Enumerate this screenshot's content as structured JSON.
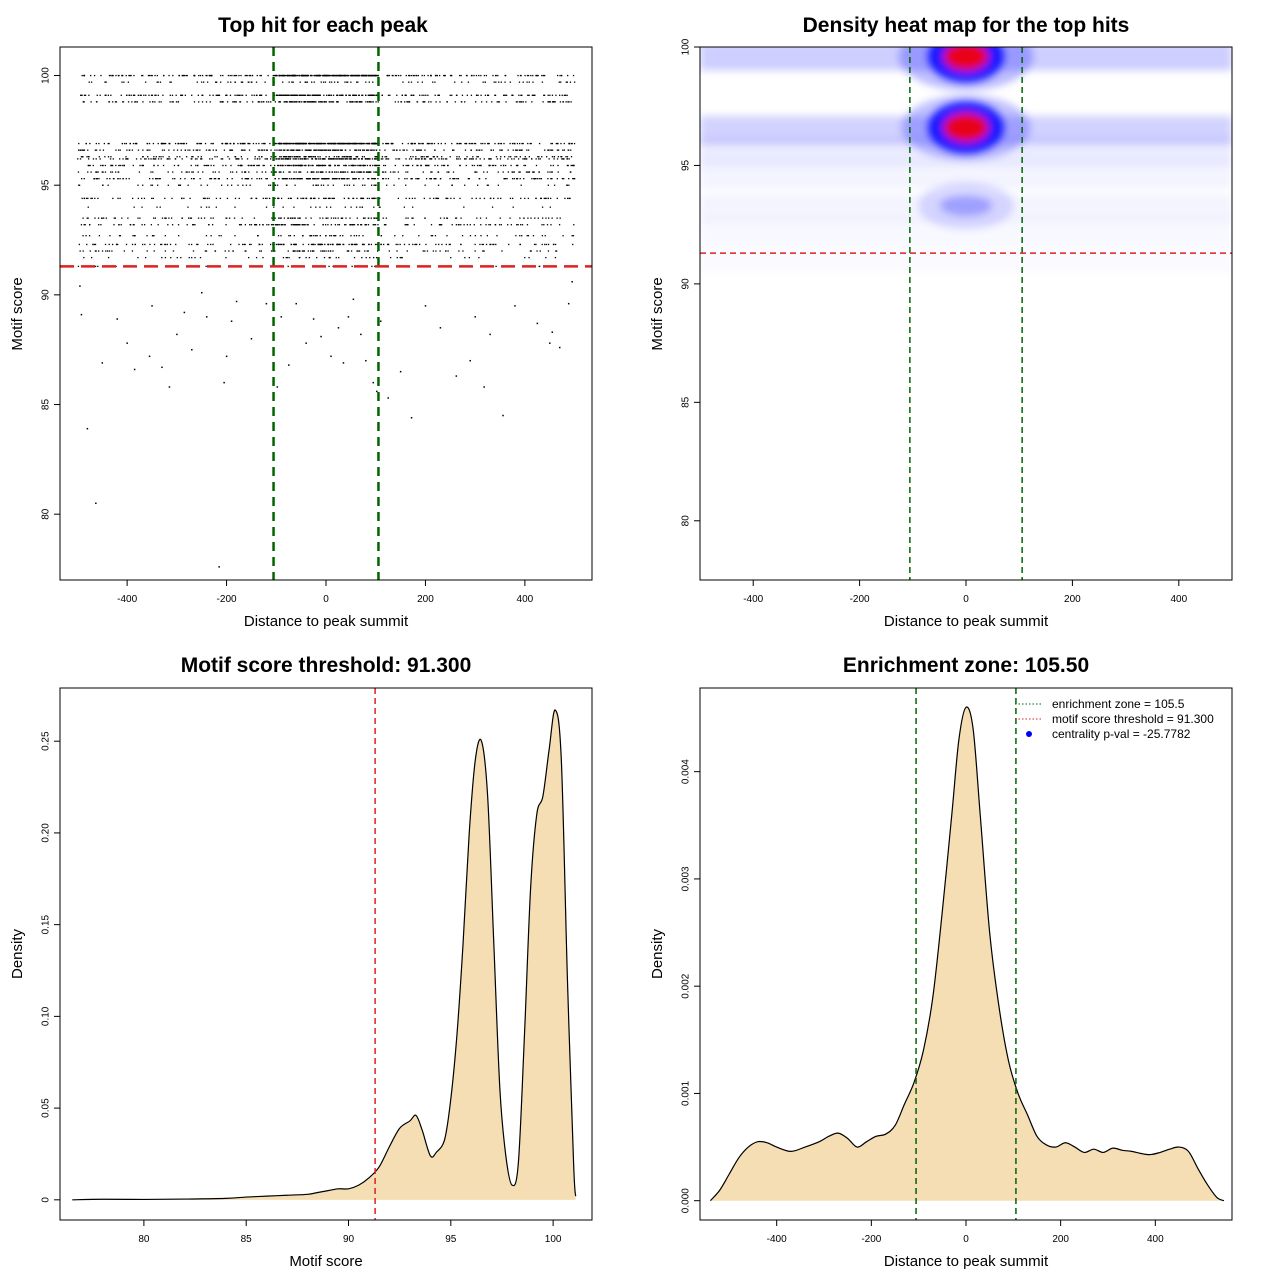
{
  "colors": {
    "enrichment_line": "#006400",
    "threshold_line": "#dd2222",
    "fill": "#f5deb3",
    "heat_low": "#ffffff",
    "heat_mid": "#0000ff",
    "heat_high": "#ff0000",
    "centrality_dot": "#0000ff"
  },
  "chart_data": [
    {
      "type": "scatter",
      "title": "Top hit for each peak",
      "xlabel": "Distance to peak summit",
      "ylabel": "Motif score",
      "xlim": [
        -535,
        535
      ],
      "ylim": [
        77,
        101.3
      ],
      "xticks": [
        -400,
        -200,
        0,
        200,
        400
      ],
      "yticks": [
        80,
        85,
        90,
        95,
        100
      ],
      "vlines": [
        -105.5,
        105.5
      ],
      "hline": 91.3,
      "score_levels": [
        100,
        99.7,
        99.1,
        98.8,
        96.9,
        96.6,
        96.3,
        96.2,
        95.9,
        95.6,
        95.3,
        95.0,
        94.4,
        94.0,
        93.5,
        93.2,
        92.7,
        92.3,
        92.0,
        91.7,
        91.3
      ],
      "low_points": [
        [
          -495,
          90.4
        ],
        [
          -492,
          89.1
        ],
        [
          -480,
          83.9
        ],
        [
          -463,
          80.5
        ],
        [
          -450,
          86.9
        ],
        [
          -420,
          88.9
        ],
        [
          -400,
          87.8
        ],
        [
          -385,
          86.6
        ],
        [
          -355,
          87.2
        ],
        [
          -350,
          89.5
        ],
        [
          -330,
          86.7
        ],
        [
          -315,
          85.8
        ],
        [
          -300,
          88.2
        ],
        [
          -285,
          89.2
        ],
        [
          -270,
          87.5
        ],
        [
          -250,
          90.1
        ],
        [
          -240,
          89.0
        ],
        [
          -215,
          77.6
        ],
        [
          -205,
          86.0
        ],
        [
          -200,
          87.2
        ],
        [
          -190,
          88.8
        ],
        [
          -180,
          89.7
        ],
        [
          -150,
          88.0
        ],
        [
          -120,
          89.6
        ],
        [
          -98,
          85.8
        ],
        [
          -90,
          89.0
        ],
        [
          -75,
          86.8
        ],
        [
          -60,
          89.6
        ],
        [
          -40,
          87.8
        ],
        [
          -25,
          88.9
        ],
        [
          -10,
          88.1
        ],
        [
          10,
          87.2
        ],
        [
          25,
          88.5
        ],
        [
          35,
          86.9
        ],
        [
          45,
          89.0
        ],
        [
          55,
          89.8
        ],
        [
          70,
          88.2
        ],
        [
          80,
          87.0
        ],
        [
          95,
          86.0
        ],
        [
          102,
          85.6
        ],
        [
          110,
          88.8
        ],
        [
          125,
          85.3
        ],
        [
          150,
          86.5
        ],
        [
          172,
          84.4
        ],
        [
          200,
          89.5
        ],
        [
          230,
          88.5
        ],
        [
          262,
          86.3
        ],
        [
          290,
          87.0
        ],
        [
          300,
          89.0
        ],
        [
          318,
          85.8
        ],
        [
          330,
          88.2
        ],
        [
          356,
          84.5
        ],
        [
          380,
          89.5
        ],
        [
          425,
          88.7
        ],
        [
          450,
          87.8
        ],
        [
          455,
          88.3
        ],
        [
          470,
          87.6
        ],
        [
          488,
          89.6
        ],
        [
          495,
          90.6
        ]
      ]
    },
    {
      "type": "heatmap",
      "title": "Density heat map for the top hits",
      "xlabel": "Distance to peak summit",
      "ylabel": "Motif score",
      "xlim": [
        -500,
        500
      ],
      "ylim": [
        77.5,
        100
      ],
      "xticks": [
        -400,
        -200,
        0,
        200,
        400
      ],
      "yticks": [
        80,
        85,
        90,
        95,
        100
      ],
      "vlines": [
        -105.5,
        105.5
      ],
      "hline": 91.3,
      "hotspots": [
        {
          "x": 0,
          "y": 99.6,
          "intensity": 1.0
        },
        {
          "x": 0,
          "y": 96.6,
          "intensity": 0.9
        },
        {
          "x": 0,
          "y": 93.3,
          "intensity": 0.3
        }
      ]
    },
    {
      "type": "area",
      "title": "Motif score threshold: 91.300",
      "xlabel": "Motif score",
      "ylabel": "Density",
      "xlim": [
        75.9,
        101.9
      ],
      "ylim": [
        -0.011,
        0.279
      ],
      "xticks": [
        80,
        85,
        90,
        95,
        100
      ],
      "yticks": [
        0.0,
        0.05,
        0.1,
        0.15,
        0.2,
        0.25
      ],
      "vline": 91.3,
      "x": [
        76.5,
        78,
        80,
        82,
        84,
        85,
        86,
        87,
        88,
        88.5,
        89,
        89.5,
        90,
        90.5,
        91,
        91.5,
        92,
        92.5,
        93,
        93.3,
        93.6,
        94,
        94.3,
        94.7,
        95,
        95.3,
        95.6,
        95.9,
        96.2,
        96.5,
        96.8,
        97.1,
        97.4,
        97.7,
        98,
        98.3,
        98.6,
        98.9,
        99.2,
        99.5,
        99.8,
        100.1,
        100.4,
        100.7,
        101.0,
        101.1
      ],
      "y": [
        0.0,
        0.0003,
        0.0002,
        0.0004,
        0.0008,
        0.0015,
        0.002,
        0.0025,
        0.003,
        0.004,
        0.005,
        0.006,
        0.006,
        0.008,
        0.012,
        0.018,
        0.029,
        0.039,
        0.043,
        0.046,
        0.038,
        0.024,
        0.026,
        0.033,
        0.055,
        0.09,
        0.14,
        0.2,
        0.24,
        0.25,
        0.22,
        0.14,
        0.06,
        0.023,
        0.008,
        0.02,
        0.09,
        0.17,
        0.21,
        0.22,
        0.245,
        0.267,
        0.24,
        0.12,
        0.02,
        0.002
      ]
    },
    {
      "type": "area",
      "title": "Enrichment zone: 105.50",
      "xlabel": "Distance to peak summit",
      "ylabel": "Density",
      "xlim": [
        -562,
        562
      ],
      "ylim": [
        -0.00018,
        0.00478
      ],
      "xticks": [
        -400,
        -200,
        0,
        200,
        400
      ],
      "yticks": [
        0.0,
        0.001,
        0.002,
        0.003,
        0.004
      ],
      "yticklabels": [
        "0.000",
        "0.001",
        "0.002",
        "0.003",
        "0.004"
      ],
      "vlines": [
        -105.5,
        105.5
      ],
      "x": [
        -540,
        -520,
        -500,
        -480,
        -460,
        -440,
        -420,
        -400,
        -370,
        -340,
        -310,
        -290,
        -270,
        -250,
        -230,
        -210,
        -190,
        -170,
        -150,
        -130,
        -110,
        -90,
        -70,
        -50,
        -30,
        -15,
        0,
        15,
        30,
        50,
        70,
        90,
        110,
        130,
        150,
        170,
        190,
        210,
        230,
        250,
        270,
        290,
        310,
        330,
        350,
        370,
        390,
        410,
        430,
        450,
        470,
        490,
        510,
        530,
        545
      ],
      "y": [
        0.0,
        0.0001,
        0.00025,
        0.0004,
        0.0005,
        0.00055,
        0.00054,
        0.0005,
        0.00046,
        0.0005,
        0.00055,
        0.0006,
        0.00063,
        0.00058,
        0.0005,
        0.00055,
        0.0006,
        0.00062,
        0.0007,
        0.0009,
        0.0011,
        0.0014,
        0.0019,
        0.0027,
        0.0036,
        0.0043,
        0.0046,
        0.0044,
        0.0036,
        0.0025,
        0.0018,
        0.0013,
        0.001,
        0.0008,
        0.0006,
        0.00052,
        0.0005,
        0.00054,
        0.0005,
        0.00045,
        0.00048,
        0.00045,
        0.00049,
        0.00047,
        0.00046,
        0.00044,
        0.00043,
        0.00045,
        0.00048,
        0.0005,
        0.00046,
        0.0003,
        0.00015,
        3e-05,
        0.0
      ],
      "legend": [
        {
          "label": "enrichment zone = 105.5",
          "symbol": "dotted-green"
        },
        {
          "label": "motif score threshold = 91.300",
          "symbol": "dotted-red"
        },
        {
          "label": "centrality p-val = -25.7782",
          "symbol": "blue-dot"
        }
      ]
    }
  ]
}
